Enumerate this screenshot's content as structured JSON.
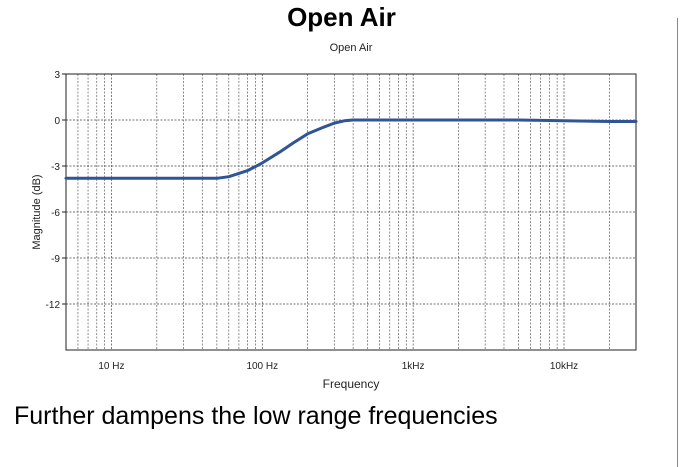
{
  "slide": {
    "title": "Open Air",
    "caption": "Further dampens the low range frequencies"
  },
  "chart_data": {
    "type": "line",
    "title": "Open Air",
    "xlabel": "Frequency",
    "ylabel": "Magnitude (dB)",
    "xscale": "log",
    "xlim": [
      5,
      30000
    ],
    "ylim": [
      -15,
      3
    ],
    "grid": true,
    "x_ticks": [
      {
        "value": 10,
        "label": "10 Hz"
      },
      {
        "value": 100,
        "label": "100 Hz"
      },
      {
        "value": 1000,
        "label": "1kHz"
      },
      {
        "value": 10000,
        "label": "10kHz"
      }
    ],
    "y_ticks": [
      {
        "value": 3,
        "label": "3"
      },
      {
        "value": 0,
        "label": "0"
      },
      {
        "value": -3,
        "label": "-3"
      },
      {
        "value": -6,
        "label": "-6"
      },
      {
        "value": -9,
        "label": "-9"
      },
      {
        "value": -12,
        "label": "-12"
      }
    ],
    "line_color": "#2f5597",
    "series": [
      {
        "x": [
          5,
          10,
          20,
          40,
          50,
          60,
          80,
          100,
          130,
          160,
          200,
          250,
          300,
          350,
          400,
          500,
          700,
          1000,
          2000,
          5000,
          10000,
          20000,
          30000
        ],
        "values": [
          -3.8,
          -3.8,
          -3.8,
          -3.8,
          -3.8,
          -3.7,
          -3.3,
          -2.8,
          -2.1,
          -1.5,
          -0.9,
          -0.5,
          -0.2,
          -0.05,
          0,
          0,
          0,
          0,
          0,
          0,
          -0.05,
          -0.1,
          -0.1
        ]
      }
    ]
  }
}
